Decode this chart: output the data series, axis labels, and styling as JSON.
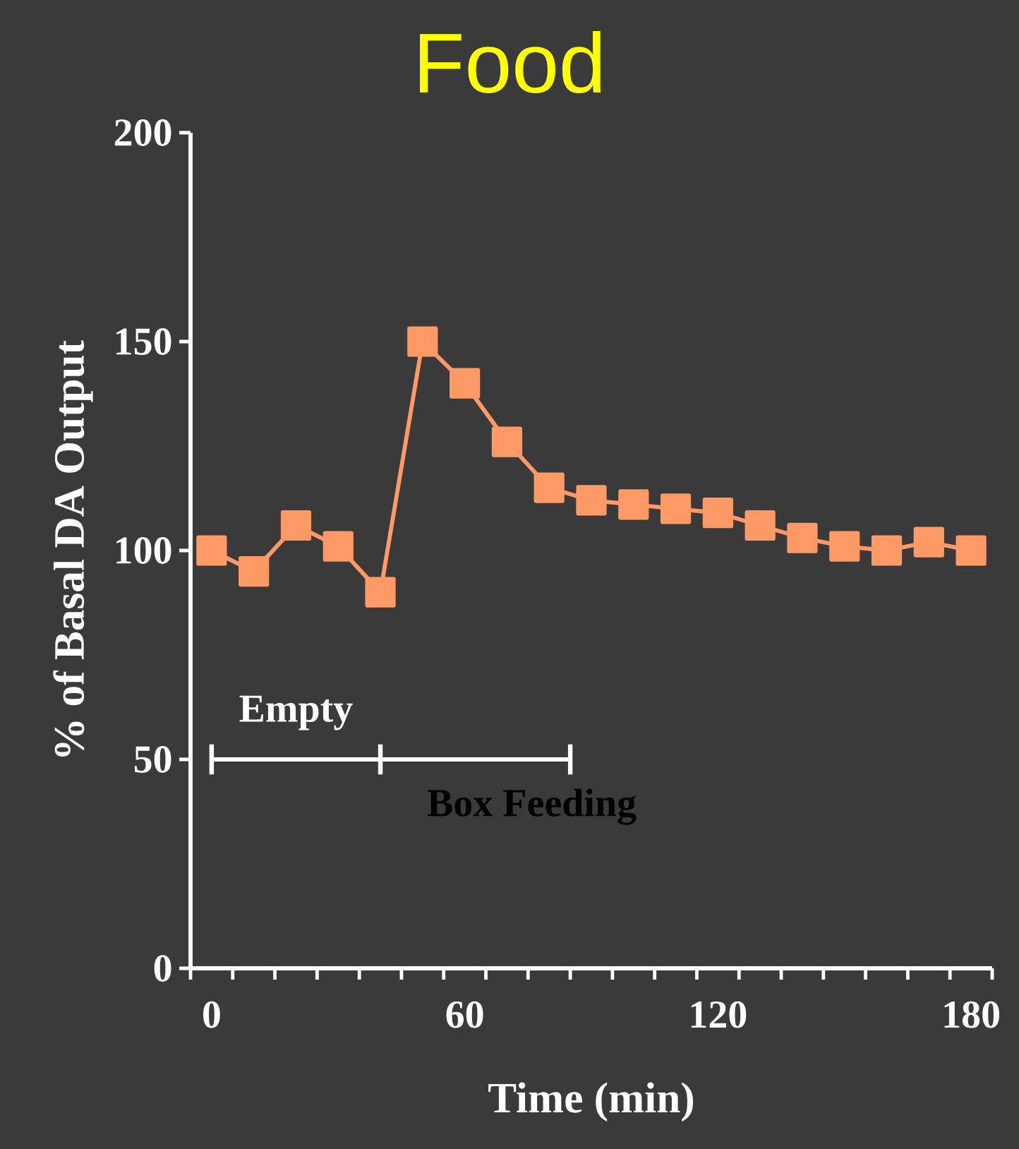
{
  "chart_data": {
    "type": "line",
    "title": "Food",
    "xlabel": "Time (min)",
    "ylabel": "% of Basal DA Output",
    "x": [
      0,
      10,
      20,
      30,
      40,
      50,
      60,
      70,
      80,
      90,
      100,
      110,
      120,
      130,
      140,
      150,
      160,
      170,
      180
    ],
    "series": [
      {
        "color": "#ff9966",
        "values": [
          100,
          95,
          106,
          101,
          90,
          150,
          140,
          126,
          115,
          112,
          111,
          110,
          109,
          106,
          103,
          101,
          100,
          102,
          100
        ]
      },
      {
        "type": "line",
        "marker": "none",
        "color": "#ffffff",
        "x": [
          0,
          40,
          85
        ],
        "values": [
          50,
          50,
          50
        ]
      }
    ],
    "marker": "square",
    "line_style": "solid",
    "xlim": [
      -5,
      185
    ],
    "xticks": [
      {
        "value": 0,
        "label": "0"
      },
      {
        "value": 60,
        "label": "60"
      },
      {
        "value": 120,
        "label": "120"
      },
      {
        "value": 180,
        "label": "180"
      },
      {
        "value": -5,
        "label": null
      },
      {
        "value": 5,
        "label": null
      },
      {
        "value": 15,
        "label": null
      },
      {
        "value": 25,
        "label": null
      },
      {
        "value": 35,
        "label": null
      },
      {
        "value": 45,
        "label": null
      },
      {
        "value": 55,
        "label": null
      },
      {
        "value": 65,
        "label": null
      },
      {
        "value": 75,
        "label": null
      },
      {
        "value": 85,
        "label": null
      },
      {
        "value": 95,
        "label": null
      },
      {
        "value": 105,
        "label": null
      },
      {
        "value": 115,
        "label": null
      },
      {
        "value": 125,
        "label": null
      },
      {
        "value": 135,
        "label": null
      },
      {
        "value": 145,
        "label": null
      },
      {
        "value": 155,
        "label": null
      },
      {
        "value": 165,
        "label": null
      },
      {
        "value": 175,
        "label": null
      },
      {
        "value": 185,
        "label": null
      }
    ],
    "ylim": [
      0,
      200
    ],
    "yticks": [
      0,
      50,
      100,
      150,
      200
    ],
    "annotations": [
      {
        "text": "Empty",
        "x": 20,
        "y": 50
      },
      {
        "text": "Box Feeding",
        "x": 62.5,
        "y": 50
      }
    ],
    "grid": false
  }
}
